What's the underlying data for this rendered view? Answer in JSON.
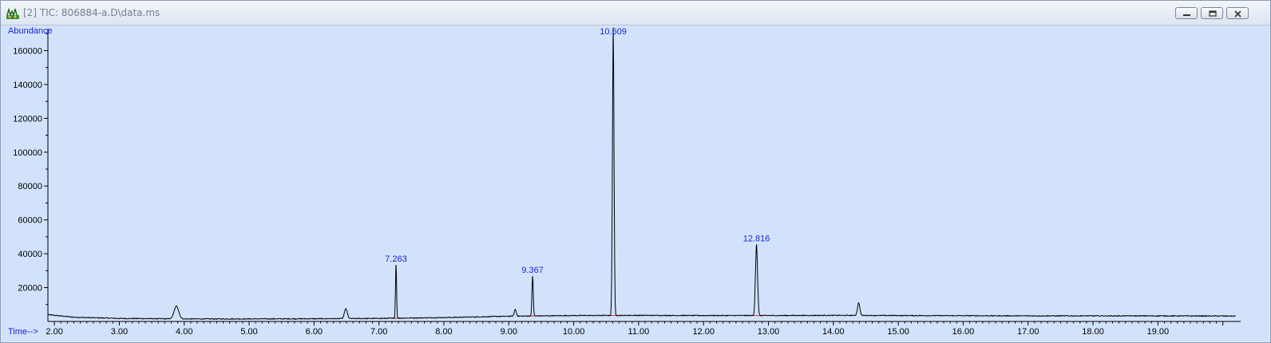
{
  "window": {
    "title": "[2] TIC: 806884-a.D\\data.ms",
    "buttons": [
      "minimize",
      "restore",
      "close"
    ]
  },
  "colors": {
    "plot_background": "#d2e2fb",
    "trace": "#000000",
    "label": "#1b25d6",
    "baseline_marker": "#e03030"
  },
  "chart_data": {
    "type": "line",
    "title": "",
    "xlabel": "Time-->",
    "ylabel": "Abundance",
    "xlim": [
      1.9,
      20.25
    ],
    "ylim": [
      0,
      172000
    ],
    "x_ticks": [
      "2.00",
      "3.00",
      "4.00",
      "5.00",
      "6.00",
      "7.00",
      "8.00",
      "9.00",
      "10.00",
      "11.00",
      "12.00",
      "13.00",
      "14.00",
      "15.00",
      "16.00",
      "17.00",
      "18.00",
      "19.00"
    ],
    "y_ticks": [
      "20000",
      "40000",
      "60000",
      "80000",
      "100000",
      "120000",
      "140000",
      "160000"
    ],
    "grid": false,
    "baseline": [
      [
        1.9,
        4000
      ],
      [
        2.3,
        2500
      ],
      [
        3.0,
        1800
      ],
      [
        4.0,
        1500
      ],
      [
        5.0,
        1500
      ],
      [
        6.0,
        1600
      ],
      [
        7.0,
        1800
      ],
      [
        8.0,
        2300
      ],
      [
        9.0,
        3100
      ],
      [
        10.0,
        3500
      ],
      [
        11.0,
        3600
      ],
      [
        12.0,
        3500
      ],
      [
        13.0,
        3500
      ],
      [
        14.0,
        3600
      ],
      [
        15.0,
        3500
      ],
      [
        16.0,
        3400
      ],
      [
        17.0,
        3300
      ],
      [
        18.0,
        3300
      ],
      [
        19.0,
        3300
      ],
      [
        20.2,
        3200
      ]
    ],
    "peaks": [
      {
        "rt": 3.88,
        "height": 7500,
        "width": 0.035
      },
      {
        "rt": 6.49,
        "height": 5800,
        "width": 0.022
      },
      {
        "rt": 7.263,
        "height": 31500,
        "width": 0.008
      },
      {
        "rt": 9.1,
        "height": 4000,
        "width": 0.015
      },
      {
        "rt": 9.367,
        "height": 23500,
        "width": 0.01
      },
      {
        "rt": 10.609,
        "height": 170000,
        "width": 0.012
      },
      {
        "rt": 12.816,
        "height": 42000,
        "width": 0.016
      },
      {
        "rt": 14.39,
        "height": 7500,
        "width": 0.018
      }
    ],
    "peak_labels": [
      {
        "rt": 7.263,
        "height": 31500,
        "label": "7.263"
      },
      {
        "rt": 9.367,
        "height": 23500,
        "label": "9.367"
      },
      {
        "rt": 10.609,
        "height": 170000,
        "label": "10.609"
      },
      {
        "rt": 12.816,
        "height": 42000,
        "label": "12.816"
      }
    ]
  }
}
